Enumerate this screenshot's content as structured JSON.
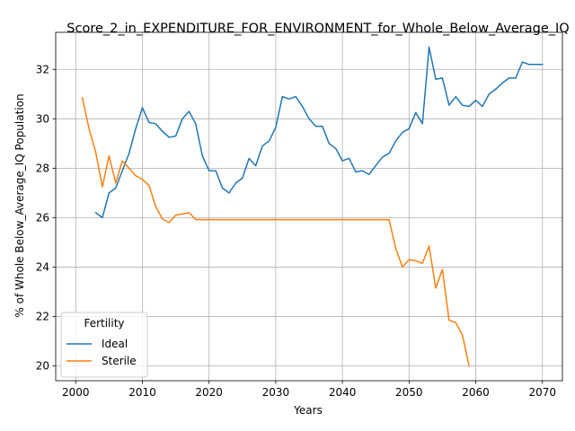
{
  "chart_data": {
    "type": "line",
    "title": "Score_2_in_EXPENDITURE_FOR_ENVIRONMENT_for_Whole_Below_Average_IQ",
    "xlabel": "Years",
    "ylabel": "% of Whole Below_Average_IQ Population",
    "xlim": [
      1997,
      2073
    ],
    "ylim": [
      19.4,
      33.5
    ],
    "xticks": [
      2000,
      2010,
      2020,
      2030,
      2040,
      2050,
      2060,
      2070
    ],
    "yticks": [
      20,
      22,
      24,
      26,
      28,
      30,
      32
    ],
    "grid": true,
    "legend": {
      "title": "Fertility",
      "placement": "lower-left"
    },
    "series": [
      {
        "name": "Ideal",
        "color": "#1f77b4",
        "x": [
          2003,
          2004,
          2005,
          2006,
          2007,
          2008,
          2009,
          2010,
          2011,
          2012,
          2013,
          2014,
          2015,
          2016,
          2017,
          2018,
          2019,
          2020,
          2021,
          2022,
          2023,
          2024,
          2025,
          2026,
          2027,
          2028,
          2029,
          2030,
          2031,
          2032,
          2033,
          2034,
          2035,
          2036,
          2037,
          2038,
          2039,
          2040,
          2041,
          2042,
          2043,
          2044,
          2045,
          2046,
          2047,
          2048,
          2049,
          2050,
          2051,
          2052,
          2053,
          2054,
          2055,
          2056,
          2057,
          2058,
          2059,
          2060,
          2061,
          2062,
          2063,
          2064,
          2065,
          2066,
          2067,
          2068,
          2069,
          2070
        ],
        "y": [
          26.2,
          26.0,
          27.0,
          27.2,
          27.9,
          28.6,
          29.6,
          30.45,
          29.85,
          29.8,
          29.5,
          29.25,
          29.3,
          30.0,
          30.3,
          29.8,
          28.5,
          27.9,
          27.9,
          27.2,
          27.0,
          27.4,
          27.6,
          28.4,
          28.1,
          28.9,
          29.1,
          29.65,
          30.9,
          30.8,
          30.9,
          30.5,
          30.0,
          29.7,
          29.7,
          29.0,
          28.8,
          28.3,
          28.4,
          27.85,
          27.9,
          27.75,
          28.1,
          28.45,
          28.6,
          29.1,
          29.45,
          29.6,
          30.25,
          29.8,
          32.9,
          31.6,
          31.65,
          30.55,
          30.9,
          30.55,
          30.5,
          30.75,
          30.5,
          31.0,
          31.2,
          31.45,
          31.65,
          31.65,
          32.3,
          32.2,
          32.2,
          32.2
        ]
      },
      {
        "name": "Sterile",
        "color": "#ff7f0e",
        "x": [
          2001,
          2002,
          2003,
          2004,
          2005,
          2006,
          2007,
          2008,
          2009,
          2010,
          2011,
          2012,
          2013,
          2014,
          2015,
          2016,
          2017,
          2018,
          2019,
          2020,
          2025,
          2030,
          2035,
          2040,
          2045,
          2046,
          2047,
          2048,
          2049,
          2050,
          2051,
          2052,
          2053,
          2054,
          2055,
          2056,
          2057,
          2058,
          2059
        ],
        "y": [
          30.85,
          29.6,
          28.65,
          27.25,
          28.5,
          27.4,
          28.3,
          28.0,
          27.7,
          27.55,
          27.3,
          26.45,
          25.95,
          25.8,
          26.1,
          26.15,
          26.2,
          25.92,
          25.92,
          25.92,
          25.92,
          25.92,
          25.92,
          25.92,
          25.92,
          25.92,
          25.92,
          24.75,
          24.0,
          24.3,
          24.25,
          24.15,
          24.85,
          23.15,
          23.9,
          21.85,
          21.75,
          21.25,
          20.0
        ]
      }
    ]
  }
}
